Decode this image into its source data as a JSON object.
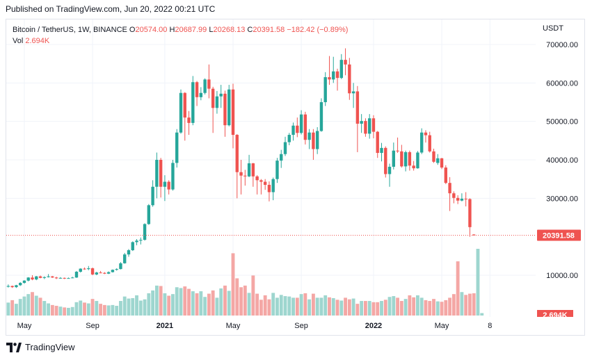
{
  "published": "Published on TradingView.com, Jun 20, 2022 00:21 UTC",
  "legend": {
    "symbol": "Bitcoin / TetherUS, 1W, BINANCE",
    "o_label": "O",
    "o_value": "20574.00",
    "h_label": "H",
    "h_value": "20687.99",
    "l_label": "L",
    "l_value": "20268.13",
    "c_label": "C",
    "c_value": "20391.58",
    "change": "−182.42 (−0.89%)",
    "vol_label": "Vol",
    "vol_value": "2.694K"
  },
  "footer": {
    "brand": "TradingView"
  },
  "colors": {
    "up": "#26a69a",
    "down": "#ef5350",
    "up_vol": "#9ed6cf",
    "down_vol": "#f4a7a5",
    "grid": "#f0f3fa",
    "text": "#131722"
  },
  "chart_data": {
    "type": "candlestick",
    "currency_label": "USDT",
    "y_ticks": [
      "70000.00",
      "60000.00",
      "50000.00",
      "40000.00",
      "30000.00",
      "10000.00"
    ],
    "y_tick_values": [
      70000,
      60000,
      50000,
      40000,
      30000,
      10000
    ],
    "ylim": [
      2000,
      73000
    ],
    "x_labels": [
      "May",
      "Sep",
      "2021",
      "May",
      "Sep",
      "2022",
      "May",
      "8"
    ],
    "x_label_weeks": [
      4,
      21,
      39,
      56,
      73,
      91,
      108,
      120
    ],
    "last_price": "20391.58",
    "last_price_value": 20391.58,
    "last_volume": "2.694K",
    "candles_ohlc": [
      [
        7000,
        7600,
        6800,
        7200
      ],
      [
        7200,
        7300,
        6700,
        6900
      ],
      [
        6900,
        7500,
        6700,
        7400
      ],
      [
        7400,
        8200,
        7200,
        8000
      ],
      [
        8000,
        8700,
        7800,
        8600
      ],
      [
        8600,
        9500,
        8400,
        9400
      ],
      [
        9400,
        10000,
        8700,
        8900
      ],
      [
        8900,
        9800,
        8700,
        9700
      ],
      [
        9700,
        9900,
        9200,
        9300
      ],
      [
        9300,
        9700,
        9000,
        9500
      ],
      [
        9500,
        10300,
        9400,
        9700
      ],
      [
        9700,
        9800,
        9300,
        9400
      ],
      [
        9400,
        9600,
        9000,
        9200
      ],
      [
        9200,
        9500,
        9100,
        9300
      ],
      [
        9300,
        9400,
        9000,
        9200
      ],
      [
        9200,
        9400,
        9100,
        9250
      ],
      [
        9250,
        9600,
        9200,
        9400
      ],
      [
        9400,
        11100,
        9300,
        10900
      ],
      [
        10900,
        11800,
        10700,
        11700
      ],
      [
        11700,
        12000,
        11400,
        11600
      ],
      [
        11600,
        12400,
        11300,
        11800
      ],
      [
        11800,
        12000,
        10000,
        10200
      ],
      [
        10200,
        10900,
        10000,
        10700
      ],
      [
        10700,
        11100,
        10500,
        10600
      ],
      [
        10600,
        10800,
        10300,
        10400
      ],
      [
        10400,
        11000,
        10300,
        10800
      ],
      [
        10800,
        11500,
        10700,
        11400
      ],
      [
        11400,
        11800,
        11200,
        11600
      ],
      [
        11600,
        13400,
        11500,
        13100
      ],
      [
        13100,
        15800,
        13000,
        15400
      ],
      [
        15400,
        16800,
        14800,
        16500
      ],
      [
        16500,
        18800,
        16300,
        18600
      ],
      [
        18600,
        19400,
        17800,
        19000
      ],
      [
        19000,
        19800,
        18000,
        19200
      ],
      [
        19200,
        23500,
        19000,
        23300
      ],
      [
        23300,
        28500,
        23100,
        28200
      ],
      [
        28200,
        34700,
        27800,
        33000
      ],
      [
        33000,
        41900,
        30000,
        40000
      ],
      [
        40000,
        40500,
        30200,
        33000
      ],
      [
        33000,
        36000,
        29300,
        34300
      ],
      [
        34300,
        34700,
        31000,
        32300
      ],
      [
        32300,
        40000,
        32000,
        39200
      ],
      [
        39200,
        48000,
        38000,
        47100
      ],
      [
        47100,
        58300,
        46800,
        57400
      ],
      [
        57400,
        57600,
        45000,
        51000
      ],
      [
        51000,
        52700,
        46500,
        49600
      ],
      [
        49600,
        61800,
        49000,
        60200
      ],
      [
        60200,
        60500,
        54000,
        56300
      ],
      [
        56300,
        58900,
        55500,
        57400
      ],
      [
        57400,
        61200,
        57000,
        60900
      ],
      [
        60900,
        64800,
        56000,
        58500
      ],
      [
        58500,
        59000,
        47000,
        53500
      ],
      [
        53500,
        57900,
        52000,
        56500
      ],
      [
        56500,
        59500,
        53500,
        57200
      ],
      [
        57200,
        58000,
        46000,
        49000
      ],
      [
        49000,
        59500,
        48700,
        58300
      ],
      [
        58300,
        59800,
        43000,
        46500
      ],
      [
        46500,
        46700,
        30000,
        36800
      ],
      [
        36800,
        40000,
        31000,
        35900
      ],
      [
        35900,
        37400,
        33300,
        35700
      ],
      [
        35700,
        41300,
        35500,
        39100
      ],
      [
        39100,
        39200,
        33000,
        35700
      ],
      [
        35700,
        36000,
        31000,
        34700
      ],
      [
        34700,
        35000,
        31000,
        34300
      ],
      [
        34300,
        35000,
        32200,
        33500
      ],
      [
        33500,
        34400,
        29200,
        31600
      ],
      [
        31600,
        35400,
        29500,
        35000
      ],
      [
        35000,
        40500,
        34000,
        39800
      ],
      [
        39800,
        42600,
        37900,
        41500
      ],
      [
        41500,
        46000,
        41000,
        44600
      ],
      [
        44600,
        47000,
        43800,
        46500
      ],
      [
        46500,
        49700,
        45000,
        48900
      ],
      [
        48900,
        51000,
        45900,
        47000
      ],
      [
        47000,
        52900,
        46600,
        51800
      ],
      [
        51800,
        52500,
        44000,
        45200
      ],
      [
        45200,
        48000,
        42800,
        47100
      ],
      [
        47100,
        48000,
        40000,
        42800
      ],
      [
        42800,
        48500,
        41500,
        47500
      ],
      [
        47500,
        56000,
        47300,
        55000
      ],
      [
        55000,
        62800,
        54000,
        61500
      ],
      [
        61500,
        67000,
        59500,
        60900
      ],
      [
        60900,
        66800,
        60000,
        63000
      ],
      [
        63000,
        63700,
        58000,
        61300
      ],
      [
        61300,
        67500,
        61000,
        66000
      ],
      [
        66000,
        69000,
        62000,
        64800
      ],
      [
        64800,
        66500,
        55600,
        57300
      ],
      [
        57300,
        60000,
        53500,
        57800
      ],
      [
        57800,
        59200,
        42000,
        49400
      ],
      [
        49400,
        51900,
        47000,
        50100
      ],
      [
        50100,
        50800,
        46000,
        46800
      ],
      [
        46800,
        51900,
        45500,
        50800
      ],
      [
        50800,
        51600,
        45600,
        47300
      ],
      [
        47300,
        47500,
        40500,
        41800
      ],
      [
        41800,
        44400,
        39600,
        43100
      ],
      [
        43100,
        43500,
        35400,
        36300
      ],
      [
        36300,
        39000,
        33000,
        38200
      ],
      [
        38200,
        44500,
        37500,
        42400
      ],
      [
        42400,
        45800,
        41800,
        42200
      ],
      [
        42200,
        43900,
        38000,
        38300
      ],
      [
        38300,
        42400,
        37000,
        42000
      ],
      [
        42000,
        42400,
        37200,
        38500
      ],
      [
        38500,
        39700,
        37200,
        37800
      ],
      [
        37800,
        42300,
        37700,
        41900
      ],
      [
        41900,
        48200,
        41500,
        47100
      ],
      [
        47100,
        47700,
        44500,
        46400
      ],
      [
        46400,
        47300,
        41900,
        42200
      ],
      [
        42200,
        42900,
        39200,
        39500
      ],
      [
        39200,
        41500,
        38700,
        40400
      ],
      [
        40400,
        40500,
        37600,
        38000
      ],
      [
        38000,
        38600,
        33700,
        34000
      ],
      [
        34000,
        35500,
        26700,
        31300
      ],
      [
        31300,
        31800,
        28700,
        30100
      ],
      [
        30100,
        30800,
        28500,
        29400
      ],
      [
        29400,
        31300,
        29200,
        29900
      ],
      [
        29900,
        31600,
        27900,
        29800
      ],
      [
        29800,
        30000,
        20000,
        22500
      ],
      [
        20574,
        20688,
        20268,
        20392
      ]
    ],
    "volumes": [
      3.2,
      3.8,
      2.9,
      4.1,
      4.7,
      5.3,
      5.8,
      4.9,
      4.4,
      3.6,
      3.0,
      2.6,
      2.4,
      2.2,
      2.0,
      1.9,
      2.1,
      3.3,
      3.7,
      3.2,
      3.0,
      4.1,
      3.6,
      2.9,
      2.6,
      2.5,
      2.6,
      2.4,
      3.6,
      4.7,
      4.2,
      4.3,
      5.0,
      3.7,
      4.0,
      5.5,
      6.2,
      7.4,
      7.3,
      5.5,
      4.9,
      5.3,
      7.0,
      6.8,
      7.2,
      6.6,
      6.0,
      5.5,
      6.0,
      4.6,
      5.4,
      6.2,
      4.4,
      6.7,
      7.4,
      6.1,
      15.4,
      9.2,
      7.0,
      7.4,
      5.6,
      9.9,
      5.4,
      3.9,
      5.0,
      4.0,
      5.6,
      4.4,
      5.1,
      4.8,
      4.7,
      4.4,
      4.4,
      5.3,
      5.5,
      4.0,
      5.4,
      4.4,
      4.4,
      5.0,
      4.5,
      4.3,
      3.9,
      3.7,
      4.4,
      4.0,
      4.2,
      2.9,
      3.6,
      3.6,
      3.6,
      3.3,
      3.3,
      3.6,
      3.9,
      4.6,
      4.8,
      4.4,
      3.6,
      4.1,
      5.0,
      4.5,
      5.0,
      4.4,
      3.8,
      3.6,
      4.1,
      3.5,
      3.4,
      3.8,
      4.4,
      5.3,
      13.4,
      5.8,
      5.1,
      5.4,
      5.5,
      16.5,
      0.6
    ],
    "volume_ticks": {
      "peak_label_k": 2.694
    }
  }
}
